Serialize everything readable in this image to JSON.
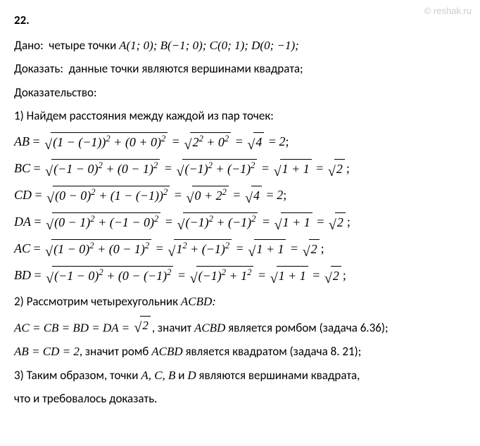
{
  "watermark": "© reshak.ru",
  "problem_number": "22.",
  "given_label": "Дано:",
  "given_text": "четыре точки ",
  "points": "A(1; 0); B(−1; 0); C(0; 1); D(0; −1);",
  "prove_label": "Доказать:",
  "prove_text": "данные точки являются вершинами квадрата;",
  "proof_label": "Доказательство:",
  "step1": "1) Найдем расстояния между каждой из пар точек:",
  "formulas": {
    "AB": {
      "lhs": "AB",
      "r1": "(1 − (−1))² + (0 + 0)²",
      "r2": "2² + 0²",
      "r3": "4",
      "result": "2"
    },
    "BC": {
      "lhs": "BC",
      "r1": "(−1 − 0)² + (0 − 1)²",
      "r2": "(−1)² + (−1)²",
      "r3": "1 + 1",
      "r4": "2"
    },
    "CD": {
      "lhs": "CD",
      "r1": "(0 − 0)² + (1 − (−1))²",
      "r2": "0 + 2²",
      "r3": "4",
      "result": "2"
    },
    "DA": {
      "lhs": "DA",
      "r1": "(0 − 1)² + (−1 − 0)²",
      "r2": "(−1)² + (−1)²",
      "r3": "1 + 1",
      "r4": "2"
    },
    "AC": {
      "lhs": "AC",
      "r1": "(1 − 0)² + (0 − 1)²",
      "r2": "1² + (−1)²",
      "r3": "1 + 1",
      "r4": "2"
    },
    "BD": {
      "lhs": "BD",
      "r1": "(−1 − 0)² + (0 − (−1)²",
      "r2": "(−1)² + 1²",
      "r3": "1 + 1",
      "r4": "2"
    }
  },
  "step2": "2) Рассмотрим четырехугольник ",
  "step2_quad": "ACBD:",
  "eq_sides": "AC = CB = BD = DA = ",
  "eq_sides_val": "2",
  "eq_sides_after": ", значит ",
  "rhombus_text": " является ромбом (задача 6.36);",
  "diag_eq": "AB = CD = 2",
  "diag_after": ", значит ромб ",
  "square_text": " является квадратом (задача 8. 21);",
  "step3_a": "3) Таким образом, точки ",
  "step3_pts": "A, C, B",
  "step3_and": " и ",
  "step3_d": "D",
  "step3_b": " являются вершинами квадрата,",
  "qed": "что и требовалось доказать.",
  "acbd": "ACBD"
}
